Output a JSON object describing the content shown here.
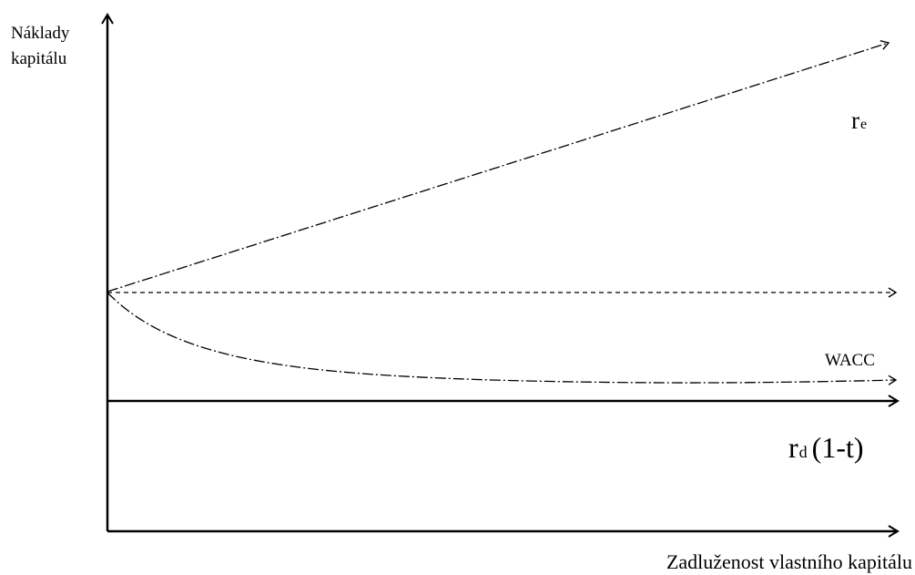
{
  "y_axis": {
    "label_line1": "Náklady",
    "label_line2": "kapitálu"
  },
  "x_axis": {
    "label": "Zadluženost vlastního kapitálu"
  },
  "curves": {
    "re": {
      "symbol": "r",
      "subscript": "e"
    },
    "wacc": {
      "label": "WACC"
    },
    "rd": {
      "symbol": "r",
      "subscript": "d",
      "suffix": "(1-t)"
    }
  },
  "colors": {
    "ink": "#000000",
    "background": "#ffffff"
  }
}
